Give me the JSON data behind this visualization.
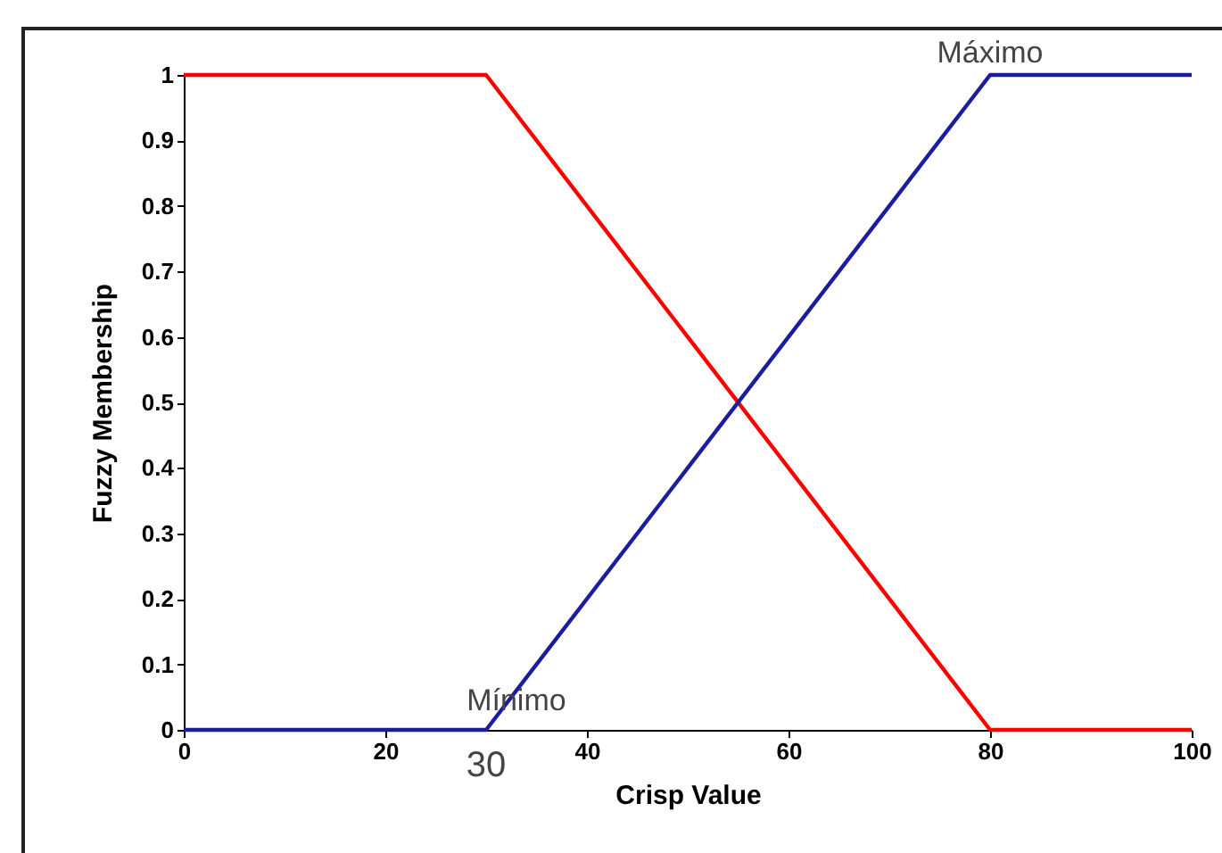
{
  "chart_data": {
    "type": "line",
    "xlabel": "Crisp Value",
    "ylabel": "Fuzzy Membership",
    "x": [
      0,
      30,
      80,
      100
    ],
    "series": [
      {
        "color": "#ff0000",
        "values": [
          1,
          1,
          0,
          0
        ]
      },
      {
        "color": "#1c1c9e",
        "values": [
          0,
          0,
          1,
          1
        ]
      }
    ],
    "xlim": [
      0,
      100
    ],
    "xticks": [
      0,
      20,
      40,
      60,
      80,
      100
    ],
    "ylim": [
      0,
      1
    ],
    "yticks": [
      0,
      0.1,
      0.2,
      0.3,
      0.4,
      0.5,
      0.6,
      0.7,
      0.8,
      0.9,
      1
    ],
    "annotations": [
      "Mínimo",
      "Máximo",
      "30"
    ],
    "grid": false,
    "legend": false,
    "marker": "none",
    "line_style": "solid"
  }
}
